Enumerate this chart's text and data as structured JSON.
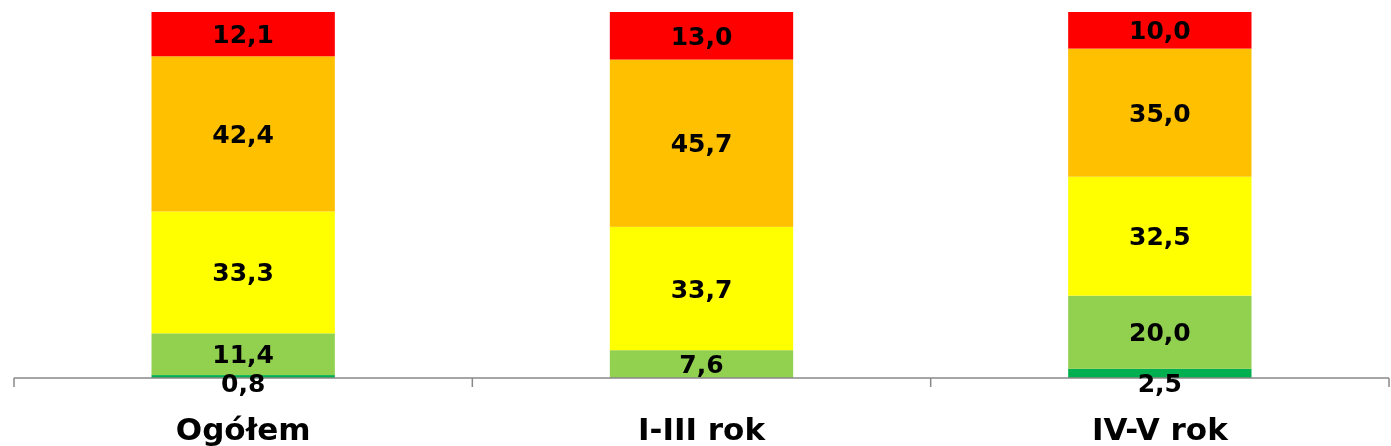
{
  "chart_data": {
    "type": "bar",
    "stacked": true,
    "categories": [
      "Ogółem",
      "I-III rok",
      "IV-V rok"
    ],
    "tick_labels": "x",
    "series": [
      {
        "color": "#00b050",
        "values": [
          0.8,
          null,
          2.5
        ],
        "value_labels": [
          "0,8",
          null,
          "2,5"
        ]
      },
      {
        "color": "#92d050",
        "values": [
          11.4,
          7.6,
          20.0
        ],
        "value_labels": [
          "11,4",
          "7,6",
          "20,0"
        ]
      },
      {
        "color": "#ffff00",
        "values": [
          33.3,
          33.7,
          32.5
        ],
        "value_labels": [
          "33,3",
          "33,7",
          "32,5"
        ]
      },
      {
        "color": "#ffc000",
        "values": [
          42.4,
          45.7,
          35.0
        ],
        "value_labels": [
          "42,4",
          "45,7",
          "35,0"
        ]
      },
      {
        "color": "#ff0000",
        "values": [
          12.1,
          13.0,
          10.0
        ],
        "value_labels": [
          "12,1",
          "13,0",
          "10,0"
        ]
      }
    ]
  }
}
